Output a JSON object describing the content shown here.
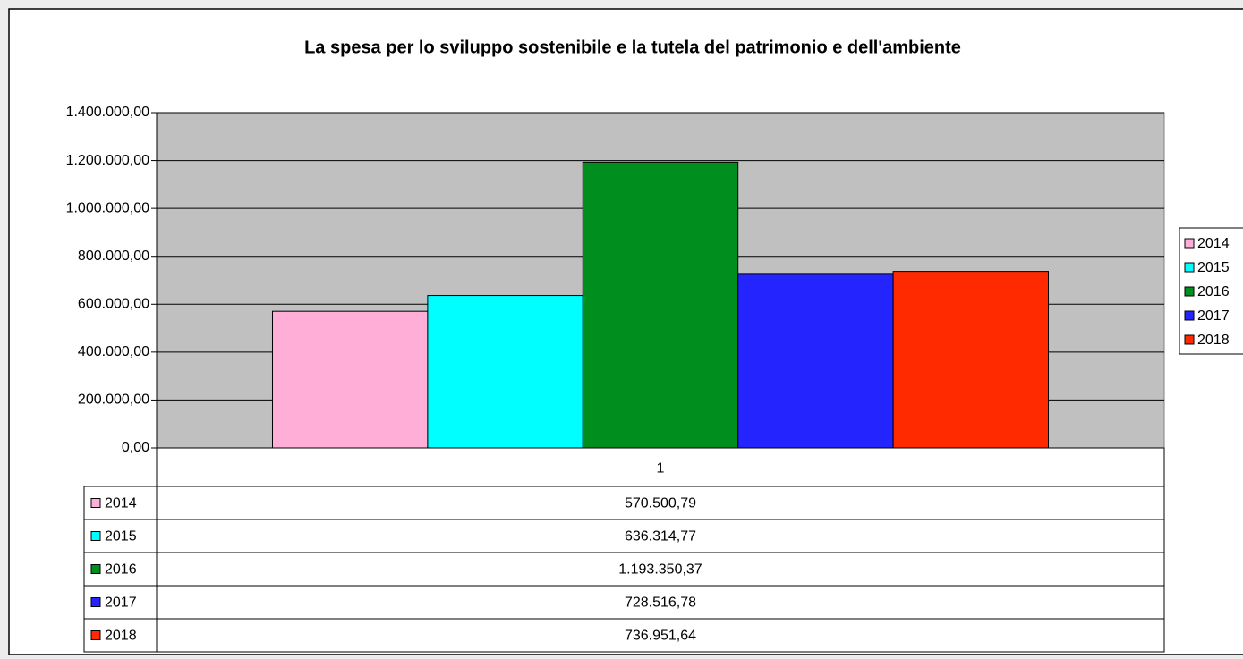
{
  "chart_data": {
    "type": "bar",
    "title": "La spesa per lo sviluppo sostenibile e la tutela del patrimonio e dell'ambiente",
    "categories": [
      "1"
    ],
    "series": [
      {
        "name": "2014",
        "color": "#ffaed7",
        "values": [
          570500.79
        ],
        "value_labels": [
          "570.500,79"
        ]
      },
      {
        "name": "2015",
        "color": "#00ffff",
        "values": [
          636314.77
        ],
        "value_labels": [
          "636.314,77"
        ]
      },
      {
        "name": "2016",
        "color": "#008e1f",
        "values": [
          1193350.37
        ],
        "value_labels": [
          "1.193.350,37"
        ]
      },
      {
        "name": "2017",
        "color": "#2424ff",
        "values": [
          728516.78
        ],
        "value_labels": [
          "728.516,78"
        ]
      },
      {
        "name": "2018",
        "color": "#ff2a00",
        "values": [
          736951.64
        ],
        "value_labels": [
          "736.951,64"
        ]
      }
    ],
    "ylim": [
      0,
      1400000
    ],
    "yticks": [
      {
        "value": 0,
        "label": "0,00"
      },
      {
        "value": 200000,
        "label": "200.000,00"
      },
      {
        "value": 400000,
        "label": "400.000,00"
      },
      {
        "value": 600000,
        "label": "600.000,00"
      },
      {
        "value": 800000,
        "label": "800.000,00"
      },
      {
        "value": 1000000,
        "label": "1.000.000,00"
      },
      {
        "value": 1200000,
        "label": "1.200.000,00"
      },
      {
        "value": 1400000,
        "label": "1.400.000,00"
      }
    ],
    "grid": true,
    "legend": "right",
    "plot_background": "#c0c0c0"
  }
}
